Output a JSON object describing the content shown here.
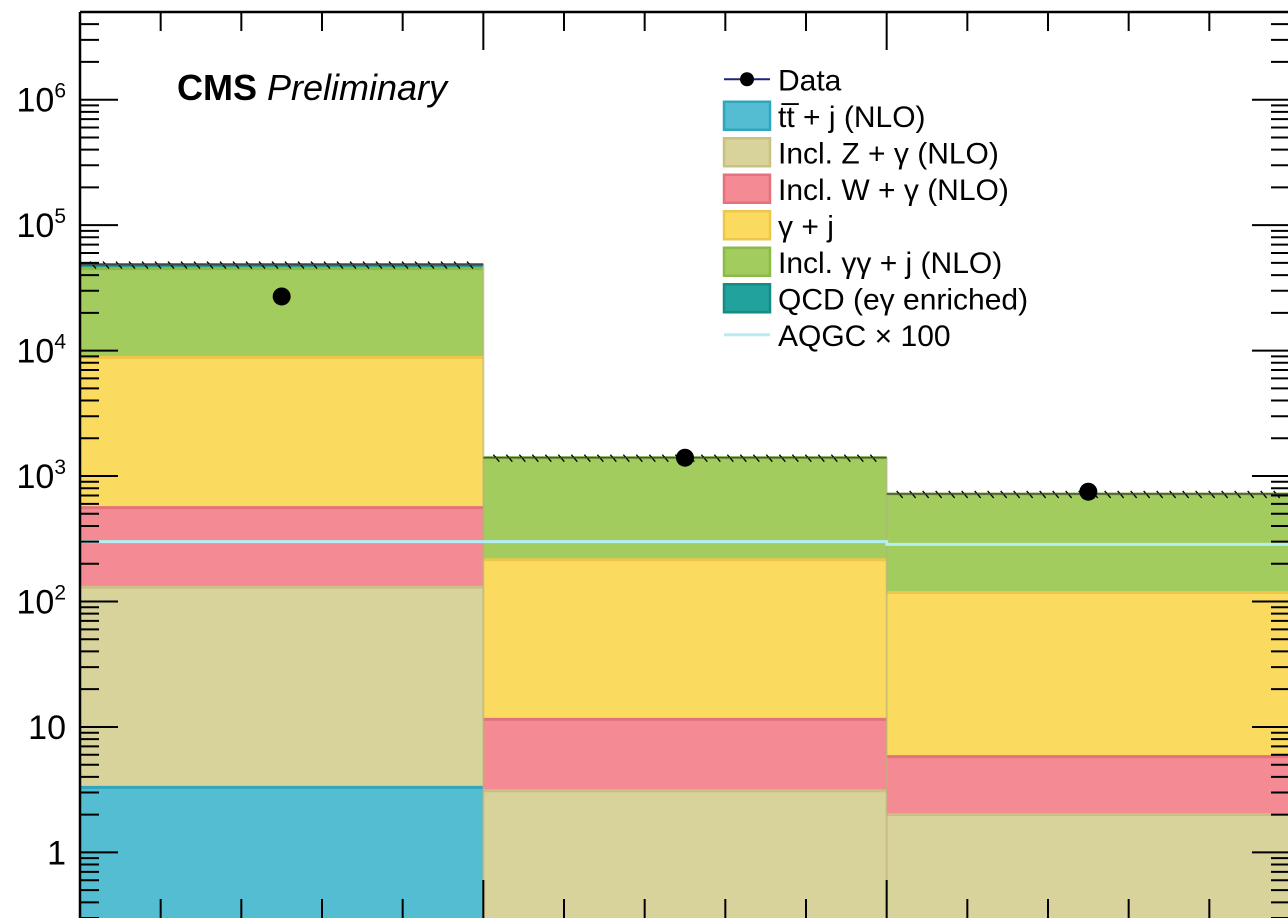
{
  "chart_data": {
    "type": "bar",
    "stacked": true,
    "yscale": "log",
    "ylim": [
      0.3,
      5000000
    ],
    "xlabel": "",
    "ylabel": "",
    "bins": [
      0,
      1,
      2,
      3
    ],
    "yticks": [
      {
        "value": 1,
        "base": "1",
        "exp": ""
      },
      {
        "value": 10,
        "base": "10",
        "exp": ""
      },
      {
        "value": 100,
        "base": "10",
        "exp": "2"
      },
      {
        "value": 1000,
        "base": "10",
        "exp": "3"
      },
      {
        "value": 10000,
        "base": "10",
        "exp": "4"
      },
      {
        "value": 100000,
        "base": "10",
        "exp": "5"
      },
      {
        "value": 1000000,
        "base": "10",
        "exp": "6"
      }
    ],
    "label": {
      "experiment": "CMS",
      "status": "Preliminary"
    },
    "stack": [
      {
        "name": "tt̅ + j (NLO)",
        "color": "#55bdd2",
        "values": [
          3.3,
          0,
          0
        ]
      },
      {
        "name": "Incl. Z + γ (NLO)",
        "color": "#d8d39a",
        "values": [
          130,
          3.1,
          2.0
        ]
      },
      {
        "name": "Incl. W + γ (NLO)",
        "color": "#f48a93",
        "values": [
          560,
          11.5,
          5.8
        ]
      },
      {
        "name": "γ + j",
        "color": "#fbdb5f",
        "values": [
          8800,
          215,
          118
        ]
      },
      {
        "name": "Incl. γγ + j (NLO)",
        "color": "#a2cc5d",
        "values": [
          45000,
          1400,
          720
        ]
      },
      {
        "name": "QCD (eγ enriched)",
        "color": "#21a29c",
        "values": [
          48500,
          1400,
          720
        ]
      }
    ],
    "stack_edge_colors": [
      "#2fa6bd",
      "#c9c184",
      "#e3727d",
      "#eec64a",
      "#8dba47",
      "#168a85"
    ],
    "data_points": {
      "name": "Data",
      "values": [
        27000,
        1400,
        750
      ]
    },
    "aqgc": {
      "name": "AQGC × 100",
      "color": "#b4eef4",
      "values": [
        300,
        300,
        285
      ]
    },
    "legend": {
      "placement": "top-right"
    }
  }
}
